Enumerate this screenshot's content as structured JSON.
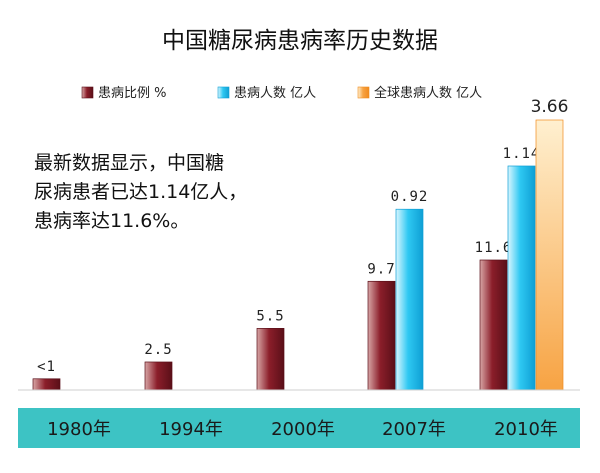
{
  "chart_data": {
    "type": "bar",
    "title": "中国糖尿病患病率历史数据",
    "categories": [
      "1980年",
      "1994年",
      "2000年",
      "2007年",
      "2010年"
    ],
    "series": [
      {
        "name": "患病比例 %",
        "values": [
          1,
          2.5,
          5.5,
          9.7,
          11.6
        ],
        "labels": [
          "<1",
          "2.5",
          "5.5",
          "9.7",
          "11.6"
        ],
        "color": "#8b1e2a"
      },
      {
        "name": "患病人数 亿人",
        "values": [
          null,
          null,
          null,
          0.92,
          1.14
        ],
        "labels": [
          "",
          "",
          "",
          "0.92",
          "1.14"
        ],
        "color": "#2ec8f2"
      },
      {
        "name": "全球患病人数 亿人",
        "values": [
          null,
          null,
          null,
          null,
          3.66
        ],
        "labels": [
          "",
          "",
          "",
          "",
          "3.66"
        ],
        "color": "#f7a343"
      }
    ],
    "legend_position": "top",
    "grid": false,
    "annotation": [
      "最新数据显示，中国糖",
      "尿病患者已达1.14亿人，",
      "患病率达11.6%。"
    ]
  },
  "colors": {
    "axis_band": "#3dc3c4",
    "series_dark": [
      "#5a0f18",
      "#0f9fd4",
      "#f08a1d"
    ],
    "series_light": [
      "#d8a6a6",
      "#d9f6ff",
      "#fff0d0"
    ]
  }
}
